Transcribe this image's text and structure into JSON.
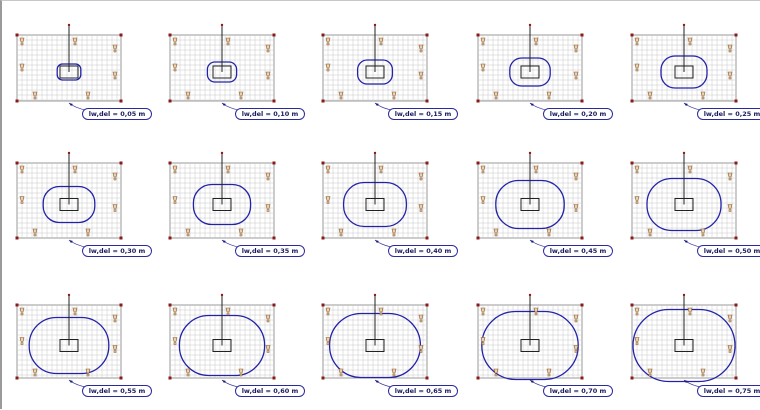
{
  "diagram": {
    "panels": [
      {
        "label": "lw,del = 0,05 m",
        "lw": 0.05
      },
      {
        "label": "lw,del = 0,10 m",
        "lw": 0.1
      },
      {
        "label": "lw,del = 0,15 m",
        "lw": 0.15
      },
      {
        "label": "lw,del = 0,20 m",
        "lw": 0.2
      },
      {
        "label": "lw,del = 0,25 m",
        "lw": 0.25
      },
      {
        "label": "lw,del = 0,30 m",
        "lw": 0.3
      },
      {
        "label": "lw,del = 0,35 m",
        "lw": 0.35
      },
      {
        "label": "lw,del = 0,40 m",
        "lw": 0.4
      },
      {
        "label": "lw,del = 0,45 m",
        "lw": 0.45
      },
      {
        "label": "lw,del = 0,50 m",
        "lw": 0.5
      },
      {
        "label": "lw,del = 0,55 m",
        "lw": 0.55
      },
      {
        "label": "lw,del = 0,60 m",
        "lw": 0.6
      },
      {
        "label": "lw,del = 0,65 m",
        "lw": 0.65
      },
      {
        "label": "lw,del = 0,70 m",
        "lw": 0.7
      },
      {
        "label": "lw,del = 0,75 m",
        "lw": 0.75
      }
    ],
    "colors": {
      "contour": "#2323a8",
      "grid": "#c8c8c8",
      "column": "#222222",
      "support": "#8b5a2b",
      "node": "#8b1a1a"
    }
  }
}
